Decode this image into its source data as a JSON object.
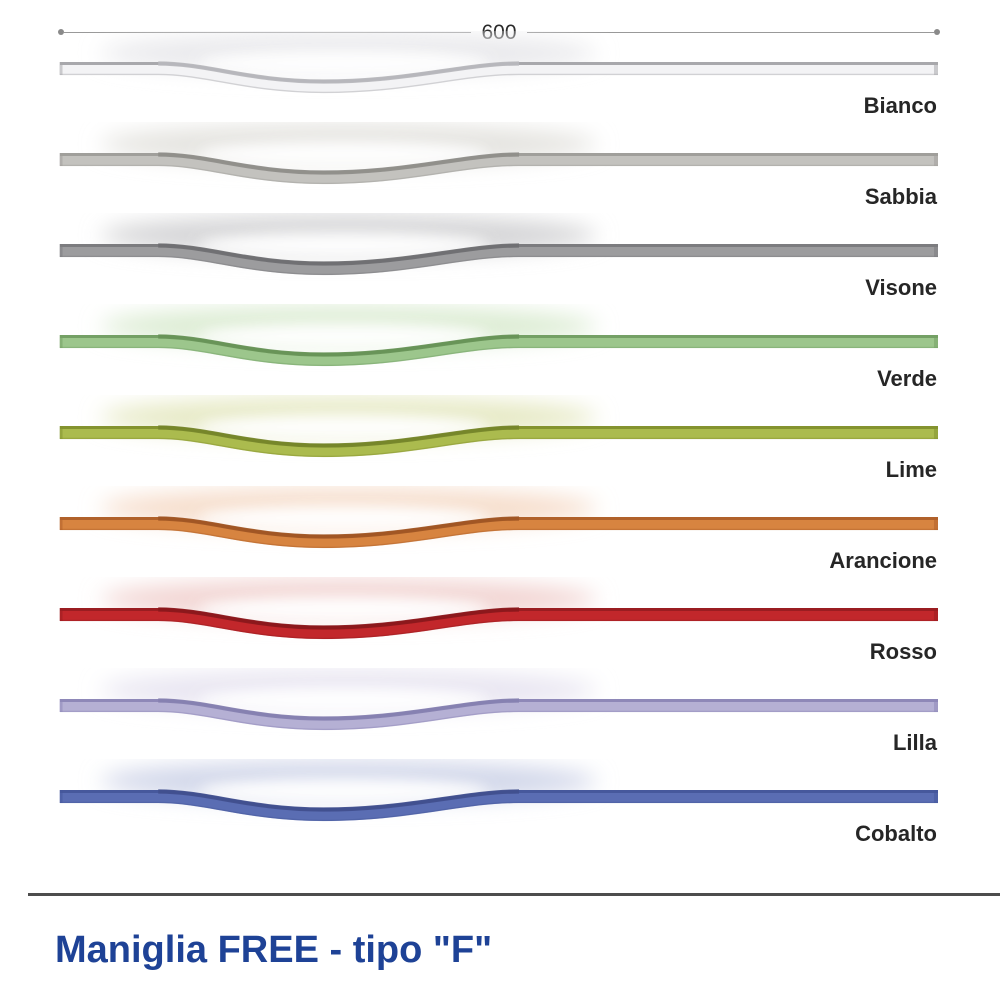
{
  "page": {
    "background": "#ffffff"
  },
  "dimension": {
    "label": "600"
  },
  "handles": [
    {
      "name": "Bianco",
      "face": "#f3f3f5",
      "edge": "#a8a8ac",
      "rim": "#b9b9bd",
      "glow": "#e9e9ec"
    },
    {
      "name": "Sabbia",
      "face": "#c3c2be",
      "edge": "#a09f9b",
      "rim": "#8f8e8a",
      "glow": "#e4e3df"
    },
    {
      "name": "Visone",
      "face": "#9c9c9e",
      "edge": "#7c7c7f",
      "rim": "#6f6f72",
      "glow": "#d4d4d6"
    },
    {
      "name": "Verde",
      "face": "#9cc68c",
      "edge": "#74a065",
      "rim": "#679257",
      "glow": "#dcecd3"
    },
    {
      "name": "Lime",
      "face": "#abbb4e",
      "edge": "#84932f",
      "rim": "#75842a",
      "glow": "#e6e9c4"
    },
    {
      "name": "Arancione",
      "face": "#d78440",
      "edge": "#b0612a",
      "rim": "#a05624",
      "glow": "#f6ddcb"
    },
    {
      "name": "Rosso",
      "face": "#c2272b",
      "edge": "#9a1d21",
      "rim": "#8b181c",
      "glow": "#f2d4d2"
    },
    {
      "name": "Lilla",
      "face": "#b5b0d4",
      "edge": "#8e88b8",
      "rim": "#8680b0",
      "glow": "#e8e5f1"
    },
    {
      "name": "Cobalto",
      "face": "#5a6db3",
      "edge": "#46589c",
      "rim": "#414f8e",
      "glow": "#d0d6e9"
    }
  ],
  "layout_labels": {
    "footer_title": "Maniglia FREE - tipo \"F\""
  }
}
